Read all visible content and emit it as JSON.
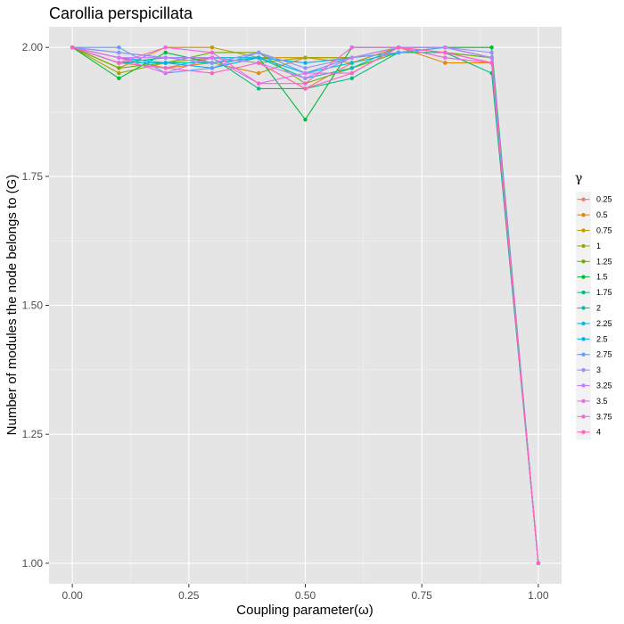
{
  "chart_data": {
    "type": "line",
    "title": "Carollia perspicillata",
    "xlabel": "Coupling parameter(ω)",
    "ylabel": "Number of modules the node belongs to (G)",
    "xlim": [
      -0.05,
      1.05
    ],
    "ylim": [
      0.96,
      2.04
    ],
    "x_ticks": [
      0.0,
      0.25,
      0.5,
      0.75,
      1.0
    ],
    "x_tick_labels": [
      "0.00",
      "0.25",
      "0.50",
      "0.75",
      "1.00"
    ],
    "y_ticks": [
      1.0,
      1.25,
      1.5,
      1.75,
      2.0
    ],
    "y_tick_labels": [
      "1.00",
      "1.25",
      "1.50",
      "1.75",
      "2.00"
    ],
    "grid": true,
    "legend_position": "right",
    "legend_title": "γ",
    "x": [
      0.0,
      0.1,
      0.2,
      0.3,
      0.4,
      0.5,
      0.6,
      0.7,
      0.8,
      0.9,
      1.0
    ],
    "series": [
      {
        "name": "0.25",
        "color": "#F8766D",
        "values": [
          2.0,
          1.98,
          1.96,
          1.98,
          1.97,
          1.92,
          1.97,
          2.0,
          1.98,
          1.97,
          1.0
        ]
      },
      {
        "name": "0.5",
        "color": "#E58700",
        "values": [
          2.0,
          1.97,
          1.96,
          1.97,
          1.95,
          1.98,
          1.98,
          2.0,
          1.97,
          1.97,
          1.0
        ]
      },
      {
        "name": "0.75",
        "color": "#C99800",
        "values": [
          2.0,
          1.96,
          2.0,
          2.0,
          1.98,
          1.98,
          1.97,
          2.0,
          2.0,
          1.98,
          1.0
        ]
      },
      {
        "name": "1",
        "color": "#A3A500",
        "values": [
          2.0,
          1.95,
          1.97,
          1.98,
          1.97,
          1.98,
          1.98,
          2.0,
          1.99,
          1.98,
          1.0
        ]
      },
      {
        "name": "1.25",
        "color": "#6BB100",
        "values": [
          2.0,
          1.96,
          1.97,
          1.99,
          1.99,
          1.93,
          1.96,
          1.99,
          1.99,
          1.98,
          1.0
        ]
      },
      {
        "name": "1.5",
        "color": "#00BA38",
        "values": [
          2.0,
          1.94,
          1.99,
          1.97,
          1.98,
          1.86,
          2.0,
          2.0,
          2.0,
          2.0,
          1.0
        ]
      },
      {
        "name": "1.75",
        "color": "#00BF7D",
        "values": [
          2.0,
          1.97,
          1.98,
          1.98,
          1.92,
          1.92,
          1.94,
          1.99,
          1.99,
          1.95,
          1.0
        ]
      },
      {
        "name": "2",
        "color": "#00C0AF",
        "values": [
          2.0,
          1.97,
          1.97,
          1.97,
          1.98,
          1.94,
          1.96,
          2.0,
          2.0,
          1.98,
          1.0
        ]
      },
      {
        "name": "2.25",
        "color": "#00BCD8",
        "values": [
          2.0,
          1.99,
          1.98,
          1.98,
          1.98,
          1.95,
          1.97,
          1.99,
          2.0,
          1.98,
          1.0
        ]
      },
      {
        "name": "2.5",
        "color": "#00B0F6",
        "values": [
          2.0,
          1.98,
          1.97,
          1.96,
          1.98,
          1.97,
          1.98,
          1.99,
          2.0,
          1.98,
          1.0
        ]
      },
      {
        "name": "2.75",
        "color": "#619CFF",
        "values": [
          2.0,
          2.0,
          1.95,
          1.96,
          1.99,
          1.95,
          1.98,
          1.99,
          2.0,
          1.98,
          1.0
        ]
      },
      {
        "name": "3",
        "color": "#9590FF",
        "values": [
          2.0,
          1.99,
          1.98,
          1.97,
          1.99,
          1.96,
          1.98,
          2.0,
          2.0,
          1.99,
          1.0
        ]
      },
      {
        "name": "3.25",
        "color": "#C77CFF",
        "values": [
          2.0,
          1.98,
          1.98,
          1.98,
          1.97,
          1.94,
          1.98,
          2.0,
          2.0,
          1.98,
          1.0
        ]
      },
      {
        "name": "3.5",
        "color": "#E76BF3",
        "values": [
          2.0,
          1.98,
          1.95,
          1.98,
          1.93,
          1.95,
          1.95,
          2.0,
          1.98,
          1.97,
          1.0
        ]
      },
      {
        "name": "3.75",
        "color": "#FA62DB",
        "values": [
          2.0,
          1.97,
          2.0,
          1.99,
          1.93,
          1.93,
          2.0,
          2.0,
          1.99,
          1.97,
          1.0
        ]
      },
      {
        "name": "4",
        "color": "#FF62BC",
        "values": [
          2.0,
          1.97,
          1.96,
          1.95,
          1.97,
          1.92,
          1.95,
          2.0,
          1.99,
          1.97,
          1.0
        ]
      }
    ]
  }
}
